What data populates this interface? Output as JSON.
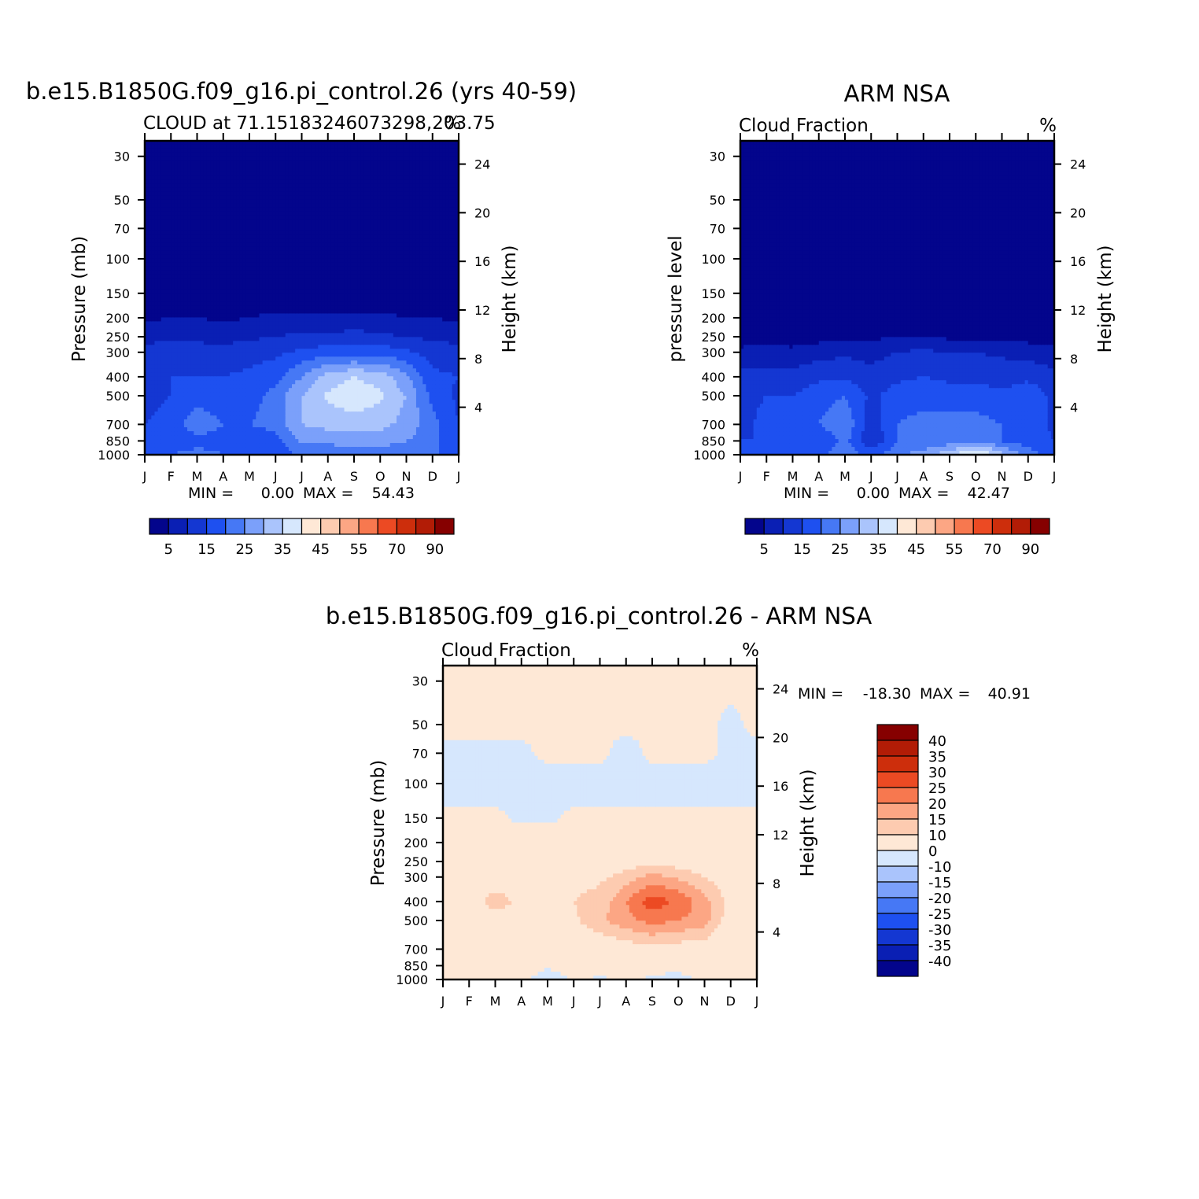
{
  "colors": {
    "seq_scale": [
      "#03058c",
      "#0a1fb4",
      "#1437d2",
      "#1e50f0",
      "#4678f5",
      "#7ba0fa",
      "#aac4fc",
      "#d6e7fd",
      "#fee8d6",
      "#fdcbb0",
      "#fca684",
      "#f7784f",
      "#ec4a23",
      "#cd2e0c",
      "#b21c06",
      "#860000"
    ],
    "diff_scale": [
      "#03058c",
      "#0a1fb4",
      "#1437d2",
      "#1e50f0",
      "#4678f5",
      "#7ba0fa",
      "#aac4fc",
      "#d6e7fd",
      "#fee8d6",
      "#fdcbb0",
      "#fca684",
      "#f7784f",
      "#ec4a23",
      "#cd2e0c",
      "#b21c06",
      "#860000"
    ]
  },
  "panels": {
    "model": {
      "title": "b.e15.B1850G.f09_g16.pi_control.26 (yrs 40-59)",
      "left_string": "CLOUD at 71.15183246073298,203.75",
      "right_string": "%",
      "ylabel": "Pressure (mb)",
      "ylabel_right": "Height (km)",
      "min_label": "MIN =",
      "min_value": "0.00",
      "max_label": "MAX =",
      "max_value": "54.43"
    },
    "obs": {
      "title": "ARM NSA",
      "left_string": "Cloud Fraction",
      "right_string": "%",
      "ylabel": "pressure level",
      "ylabel_right": "Height (km)",
      "min_label": "MIN =",
      "min_value": "0.00",
      "max_label": "MAX =",
      "max_value": "42.47"
    },
    "diff": {
      "title": "b.e15.B1850G.f09_g16.pi_control.26 - ARM NSA",
      "left_string": "Cloud Fraction",
      "right_string": "%",
      "ylabel": "Pressure (mb)",
      "ylabel_right": "Height (km)",
      "min_label": "MIN =",
      "min_value": "-18.30",
      "max_label": "MAX =",
      "max_value": "40.91"
    }
  },
  "chart_data": [
    {
      "type": "heatmap",
      "title": "b.e15.B1850G.f09_g16.pi_control.26 (yrs 40-59)",
      "subtitle": "CLOUD at 71.15183246073298,203.75",
      "units": "%",
      "x_tick_labels": [
        "J",
        "F",
        "M",
        "A",
        "M",
        "J",
        "J",
        "A",
        "S",
        "O",
        "N",
        "D",
        "J"
      ],
      "y_tick_labels": [
        "30",
        "50",
        "70",
        "100",
        "150",
        "200",
        "250",
        "300",
        "400",
        "500",
        "700",
        "850",
        "1000"
      ],
      "y_ticks": [
        30,
        50,
        70,
        100,
        150,
        200,
        250,
        300,
        400,
        500,
        700,
        850,
        1000
      ],
      "y_right_tick_labels": [
        "4",
        "8",
        "12",
        "16",
        "20",
        "24"
      ],
      "ylabel": "Pressure (mb)",
      "ylabel_right": "Height (km)",
      "ylim": [
        1000,
        25
      ],
      "log_scale_y": true,
      "min": 0.0,
      "max": 54.43,
      "colorbar_labels": [
        "5",
        "15",
        "25",
        "35",
        "45",
        "55",
        "70",
        "90"
      ],
      "profile_pressure": [
        1000,
        850,
        700,
        500,
        400,
        300,
        250,
        200,
        150,
        100,
        70,
        50,
        30
      ],
      "profile_values": [
        [
          20,
          15,
          15,
          14,
          15,
          12,
          8,
          4,
          2,
          1,
          0,
          0,
          0
        ],
        [
          20,
          16,
          16,
          15,
          15,
          13,
          9,
          5,
          2,
          1,
          0,
          0,
          0
        ],
        [
          22,
          18,
          24,
          17,
          15,
          12,
          9,
          5,
          2,
          1,
          0,
          0,
          0
        ],
        [
          20,
          18,
          20,
          17,
          15,
          12,
          8,
          4,
          2,
          1,
          0,
          0,
          0
        ],
        [
          18,
          16,
          20,
          18,
          16,
          13,
          9,
          5,
          2,
          1,
          0,
          0,
          0
        ],
        [
          15,
          18,
          22,
          22,
          18,
          14,
          10,
          6,
          2,
          1,
          0,
          0,
          0
        ],
        [
          22,
          26,
          30,
          30,
          25,
          16,
          11,
          6,
          2,
          1,
          0,
          0,
          0
        ],
        [
          22,
          26,
          32,
          36,
          32,
          18,
          11,
          6,
          2,
          1,
          0,
          0,
          0
        ],
        [
          24,
          26,
          33,
          38,
          35,
          18,
          12,
          6,
          2,
          1,
          0,
          0,
          0
        ],
        [
          24,
          26,
          32,
          36,
          33,
          18,
          11,
          6,
          2,
          1,
          0,
          0,
          0
        ],
        [
          22,
          25,
          28,
          30,
          26,
          16,
          10,
          5,
          2,
          1,
          0,
          0,
          0
        ],
        [
          20,
          22,
          22,
          18,
          16,
          13,
          9,
          5,
          2,
          1,
          0,
          0,
          0
        ],
        [
          20,
          15,
          15,
          14,
          15,
          12,
          8,
          4,
          2,
          1,
          0,
          0,
          0
        ]
      ]
    },
    {
      "type": "heatmap",
      "title": "ARM NSA",
      "subtitle": "Cloud Fraction",
      "units": "%",
      "x_tick_labels": [
        "J",
        "F",
        "M",
        "A",
        "M",
        "J",
        "J",
        "A",
        "S",
        "O",
        "N",
        "D",
        "J"
      ],
      "y_tick_labels": [
        "30",
        "50",
        "70",
        "100",
        "150",
        "200",
        "250",
        "300",
        "400",
        "500",
        "700",
        "850",
        "1000"
      ],
      "y_ticks": [
        30,
        50,
        70,
        100,
        150,
        200,
        250,
        300,
        400,
        500,
        700,
        850,
        1000
      ],
      "y_right_tick_labels": [
        "4",
        "8",
        "12",
        "16",
        "20",
        "24"
      ],
      "ylabel": "pressure level",
      "ylabel_right": "Height (km)",
      "ylim": [
        1000,
        25
      ],
      "log_scale_y": true,
      "min": 0.0,
      "max": 42.47,
      "colorbar_labels": [
        "5",
        "15",
        "25",
        "35",
        "45",
        "55",
        "70",
        "90"
      ],
      "profile_pressure": [
        1000,
        850,
        700,
        500,
        400,
        300,
        250,
        200,
        150,
        100,
        70,
        50,
        30
      ],
      "profile_values": [
        [
          18,
          15,
          14,
          14,
          12,
          6,
          3,
          2,
          1,
          0,
          0,
          0,
          0
        ],
        [
          18,
          15,
          16,
          15,
          12,
          7,
          3,
          2,
          1,
          0,
          0,
          0,
          0
        ],
        [
          18,
          15,
          18,
          15,
          12,
          6,
          3,
          2,
          1,
          0,
          0,
          0,
          0
        ],
        [
          18,
          15,
          20,
          18,
          14,
          8,
          3,
          2,
          1,
          0,
          0,
          0,
          0
        ],
        [
          24,
          22,
          24,
          20,
          14,
          9,
          4,
          2,
          1,
          0,
          0,
          0,
          0
        ],
        [
          18,
          10,
          12,
          14,
          12,
          8,
          4,
          2,
          1,
          0,
          0,
          0,
          0
        ],
        [
          24,
          20,
          20,
          17,
          14,
          10,
          5,
          2,
          1,
          0,
          0,
          0,
          0
        ],
        [
          28,
          20,
          22,
          18,
          15,
          11,
          5,
          2,
          1,
          0,
          0,
          0,
          0
        ],
        [
          34,
          22,
          22,
          17,
          14,
          10,
          4,
          2,
          1,
          0,
          0,
          0,
          0
        ],
        [
          42,
          24,
          22,
          17,
          14,
          10,
          4,
          2,
          1,
          0,
          0,
          0,
          0
        ],
        [
          32,
          20,
          20,
          16,
          13,
          9,
          4,
          2,
          1,
          0,
          0,
          0,
          0
        ],
        [
          22,
          18,
          18,
          18,
          14,
          8,
          3,
          2,
          1,
          0,
          0,
          0,
          0
        ],
        [
          18,
          15,
          14,
          14,
          12,
          6,
          3,
          2,
          1,
          0,
          0,
          0,
          0
        ]
      ]
    },
    {
      "type": "heatmap",
      "title": "b.e15.B1850G.f09_g16.pi_control.26 - ARM NSA",
      "subtitle": "Cloud Fraction",
      "units": "%",
      "x_tick_labels": [
        "J",
        "F",
        "M",
        "A",
        "M",
        "J",
        "J",
        "A",
        "S",
        "O",
        "N",
        "D",
        "J"
      ],
      "y_tick_labels": [
        "30",
        "50",
        "70",
        "100",
        "150",
        "200",
        "250",
        "300",
        "400",
        "500",
        "700",
        "850",
        "1000"
      ],
      "y_ticks": [
        30,
        50,
        70,
        100,
        150,
        200,
        250,
        300,
        400,
        500,
        700,
        850,
        1000
      ],
      "y_right_tick_labels": [
        "4",
        "8",
        "12",
        "16",
        "20",
        "24"
      ],
      "ylabel": "Pressure (mb)",
      "ylabel_right": "Height (km)",
      "ylim": [
        1000,
        25
      ],
      "log_scale_y": true,
      "min": -18.3,
      "max": 40.91,
      "colorbar_labels": [
        "40",
        "35",
        "30",
        "25",
        "20",
        "15",
        "10",
        "0",
        "-10",
        "-15",
        "-20",
        "-25",
        "-30",
        "-35",
        "-40"
      ],
      "profile_pressure": [
        1000,
        850,
        700,
        500,
        400,
        300,
        250,
        200,
        150,
        100,
        70,
        50,
        30
      ],
      "profile_values": [
        [
          2,
          2,
          1,
          2,
          4,
          6,
          5,
          3,
          1,
          -2,
          -1,
          1,
          1
        ],
        [
          3,
          3,
          2,
          4,
          8,
          6,
          5,
          3,
          1,
          -2,
          -1,
          1,
          1
        ],
        [
          8,
          10,
          9,
          8,
          12,
          7,
          6,
          3,
          1,
          -2,
          -1,
          1,
          1
        ],
        [
          2,
          3,
          5,
          6,
          9,
          7,
          6,
          3,
          -1,
          -2,
          -1,
          1,
          1
        ],
        [
          -4,
          1,
          4,
          8,
          10,
          8,
          6,
          3,
          -1,
          -2,
          1,
          1,
          1
        ],
        [
          1,
          4,
          4,
          9,
          10,
          8,
          6,
          3,
          1,
          -2,
          1,
          1,
          1
        ],
        [
          -1,
          2,
          5,
          14,
          12,
          9,
          6,
          3,
          1,
          -2,
          1,
          1,
          1
        ],
        [
          2,
          3,
          7,
          18,
          20,
          12,
          7,
          4,
          1,
          -2,
          -2,
          1,
          1
        ],
        [
          -1,
          2,
          8,
          22,
          28,
          17,
          8,
          4,
          1,
          -2,
          1,
          1,
          1
        ],
        [
          -2,
          2,
          7,
          20,
          24,
          14,
          7,
          3,
          1,
          -2,
          1,
          1,
          1
        ],
        [
          1,
          3,
          6,
          18,
          17,
          10,
          6,
          3,
          1,
          -2,
          1,
          1,
          1
        ],
        [
          1,
          3,
          3,
          6,
          8,
          6,
          5,
          3,
          1,
          -2,
          -1,
          -1,
          1
        ],
        [
          2,
          2,
          1,
          2,
          4,
          6,
          5,
          3,
          1,
          -2,
          -1,
          1,
          1
        ]
      ]
    }
  ]
}
